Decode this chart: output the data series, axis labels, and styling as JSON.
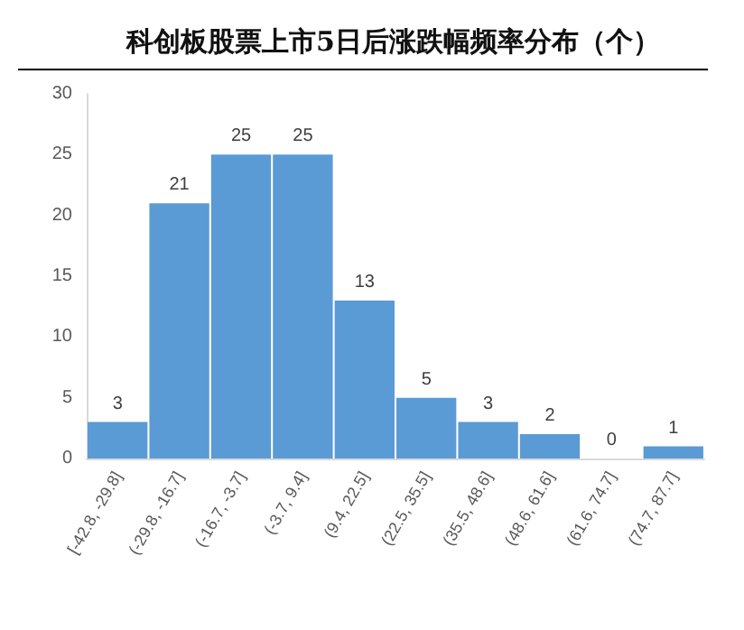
{
  "chart_data": {
    "type": "bar",
    "title": "科创板股票上市5日后涨跌幅频率分布（个）",
    "categories": [
      "[-42.8, -29.8]",
      "(-29.8, -16.7]",
      "(-16.7, -3.7]",
      "(-3.7, 9.4]",
      "(9.4, 22.5]",
      "(22.5, 35.5]",
      "(35.5, 48.6]",
      "(48.6, 61.6]",
      "(61.6, 74.7]",
      "(74.7, 87.7]"
    ],
    "values": [
      3,
      21,
      25,
      25,
      13,
      5,
      3,
      2,
      0,
      1
    ],
    "color": "#5b9bd5",
    "ylim": [
      0,
      30
    ],
    "yticks": [
      0,
      5,
      10,
      15,
      20,
      25,
      30
    ],
    "data_labels": true,
    "grid": false
  }
}
